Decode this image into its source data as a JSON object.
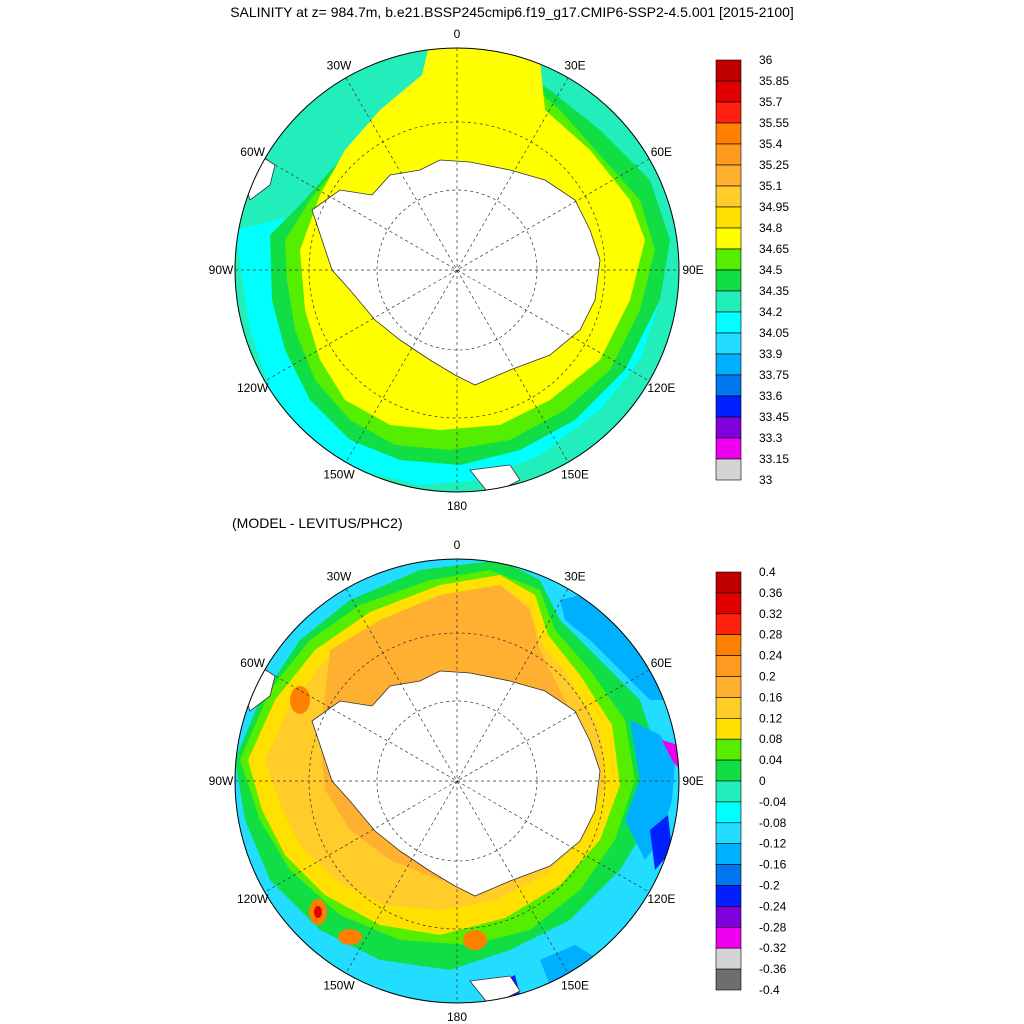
{
  "title": "SALINITY at z= 984.7m, b.e21.BSSP245cmip6.f19_g17.CMIP6-SSP2-4.5.001 [2015-2100]",
  "subtitle": "(MODEL - LEVITUS/PHC2)",
  "longitude_labels": [
    "0",
    "30E",
    "60E",
    "90E",
    "120E",
    "150E",
    "180",
    "150W",
    "120W",
    "90W",
    "60W",
    "30W"
  ],
  "chart_data": [
    {
      "type": "heatmap",
      "title": "SALINITY at z= 984.7m, b.e21.BSSP245cmip6.f19_g17.CMIP6-SSP2-4.5.001 [2015-2100]",
      "projection": "south polar stereographic",
      "colorbar_levels": [
        "36",
        "35.85",
        "35.7",
        "35.55",
        "35.4",
        "35.25",
        "35.1",
        "34.95",
        "34.8",
        "34.65",
        "34.5",
        "34.35",
        "34.2",
        "34.05",
        "33.9",
        "33.75",
        "33.6",
        "33.45",
        "33.3",
        "33.15",
        "33"
      ],
      "colors": [
        "#c00000",
        "#e00000",
        "#ff2010",
        "#ff8000",
        "#ff9a20",
        "#ffb030",
        "#ffcc2a",
        "#ffe000",
        "#ffff00",
        "#55ee00",
        "#11dd44",
        "#22eebb",
        "#00ffff",
        "#22ddff",
        "#00b0ff",
        "#0077ee",
        "#0020ff",
        "#8000dd",
        "#ee00ee",
        "#d4d4d4"
      ],
      "dominant_values": {
        "inner_ring": "34.8-34.95",
        "middle_ring": "34.65-34.8",
        "outer_ring": "34.2-34.65"
      }
    },
    {
      "type": "heatmap",
      "title": "(MODEL - LEVITUS/PHC2)",
      "projection": "south polar stereographic",
      "colorbar_levels": [
        "0.4",
        "0.36",
        "0.32",
        "0.28",
        "0.24",
        "0.2",
        "0.16",
        "0.12",
        "0.08",
        "0.04",
        "0",
        "-0.04",
        "-0.08",
        "-0.12",
        "-0.16",
        "-0.2",
        "-0.24",
        "-0.28",
        "-0.32",
        "-0.36",
        "-0.4"
      ],
      "colors": [
        "#c00000",
        "#e00000",
        "#ff2010",
        "#ff8000",
        "#ff9a20",
        "#ffb030",
        "#ffcc2a",
        "#ffe000",
        "#55ee00",
        "#11dd44",
        "#22eebb",
        "#00ffff",
        "#22ddff",
        "#00b0ff",
        "#0077ee",
        "#0020ff",
        "#8000dd",
        "#ee00ee",
        "#d4d4d4",
        "#6e6e6e"
      ],
      "dominant_values": {
        "inner_ring": "0.16-0.24",
        "middle_ring": "0.08-0.16",
        "outer_ring": "-0.12-0.08"
      }
    }
  ]
}
